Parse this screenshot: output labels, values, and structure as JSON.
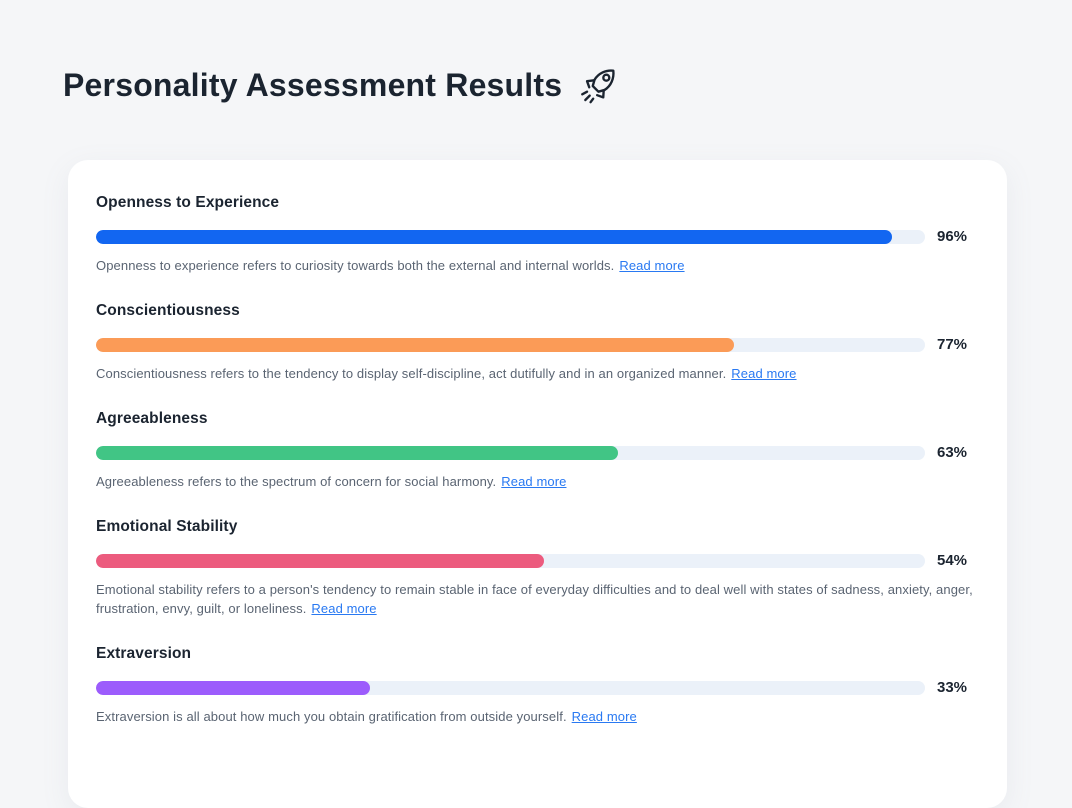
{
  "page": {
    "title": "Personality Assessment Results",
    "title_icon": "rocket-icon"
  },
  "colors": {
    "page_background": "#F5F6F8",
    "card_background": "#FFFFFF",
    "bar_track": "#EBF1F9",
    "heading_text": "#1B2430",
    "description_text": "#5A6472",
    "link_blue": "#2979F2"
  },
  "read_more_label": "Read more",
  "traits": [
    {
      "name": "Openness to Experience",
      "value": 96,
      "percent_label": "96%",
      "color": "#1266F1",
      "description": "Openness to experience refers to curiosity towards both the external and internal worlds."
    },
    {
      "name": "Conscientiousness",
      "value": 77,
      "percent_label": "77%",
      "color": "#FB9B57",
      "description": "Conscientiousness refers to the tendency to display self-discipline, act dutifully and in an organized manner."
    },
    {
      "name": "Agreeableness",
      "value": 63,
      "percent_label": "63%",
      "color": "#41C585",
      "description": "Agreeableness refers to the spectrum of concern for social harmony."
    },
    {
      "name": "Emotional Stability",
      "value": 54,
      "percent_label": "54%",
      "color": "#EC5B7E",
      "description": "Emotional stability refers to a person's tendency to remain stable in face of everyday difficulties and to deal well with states of sadness, anxiety, anger, frustration, envy, guilt, or loneliness."
    },
    {
      "name": "Extraversion",
      "value": 33,
      "percent_label": "33%",
      "color": "#9C5CFC",
      "description": "Extraversion is all about how much you obtain gratification from outside yourself."
    }
  ]
}
